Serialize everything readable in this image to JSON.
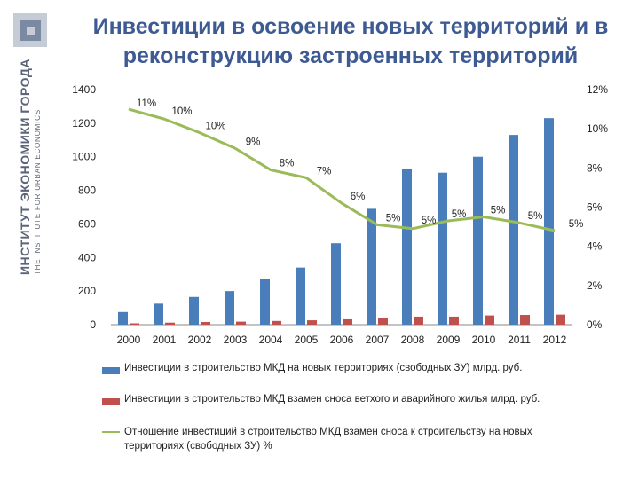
{
  "header": {
    "title": "Инвестиции в освоение новых территорий и в реконструкцию застроенных территорий",
    "org_name": "ИНСТИТУТ ЭКОНОМИКИ ГОРОДА",
    "org_name_en": "THE INSTITUTE FOR URBAN ECONOMICS"
  },
  "chart_data": {
    "type": "bar",
    "title": "",
    "categories": [
      "2000",
      "2001",
      "2002",
      "2003",
      "2004",
      "2005",
      "2006",
      "2007",
      "2008",
      "2009",
      "2010",
      "2011",
      "2012"
    ],
    "ylim": [
      0,
      1400
    ],
    "y_ticks": [
      "0",
      "200",
      "400",
      "600",
      "800",
      "1000",
      "1200",
      "1400"
    ],
    "y2lim": [
      0,
      12
    ],
    "y2_ticks": [
      "0%",
      "2%",
      "4%",
      "6%",
      "8%",
      "10%",
      "12%"
    ],
    "series": [
      {
        "name": "Инвестиции в строительство МКД  на новых территориях (свободных ЗУ) млрд. руб.",
        "type": "bar",
        "axis": "left",
        "color": "#4a7ebb",
        "values": [
          75,
          125,
          165,
          200,
          270,
          340,
          485,
          690,
          930,
          905,
          1000,
          1130,
          1230
        ]
      },
      {
        "name": "Инвестиции в строительство МКД  взамен сноса ветхого и аварийного жилья млрд. руб.",
        "type": "bar",
        "axis": "right_unused",
        "color": "#c0504d",
        "values": [
          8,
          12,
          16,
          18,
          22,
          26,
          32,
          40,
          48,
          48,
          55,
          58,
          60
        ]
      },
      {
        "name": "Отношение инвестиций в строительство МКД взамен сноса к строительству на новых территориях (свободных ЗУ) %",
        "type": "line",
        "axis": "right",
        "color": "#9bbb59",
        "values": [
          11,
          10.5,
          9.8,
          9,
          7.9,
          7.5,
          6.2,
          5.1,
          4.9,
          5.3,
          5.5,
          5.2,
          4.8
        ],
        "labels": [
          "11%",
          "10%",
          "10%",
          "9%",
          "8%",
          "7%",
          "6%",
          "5%",
          "5%",
          "5%",
          "5%",
          "5%",
          "5%"
        ]
      }
    ],
    "legend_position": "bottom",
    "grid": false
  },
  "legend": {
    "bar1": "Инвестиции в строительство МКД  на новых территориях (свободных ЗУ) млрд. руб.",
    "bar2": "Инвестиции в строительство МКД  взамен сноса ветхого и аварийного жилья млрд. руб.",
    "line_1": "Отношение инвестиций в строительство МКД взамен сноса к строительству на новых",
    "line_2": "территориях (свободных ЗУ) %"
  }
}
